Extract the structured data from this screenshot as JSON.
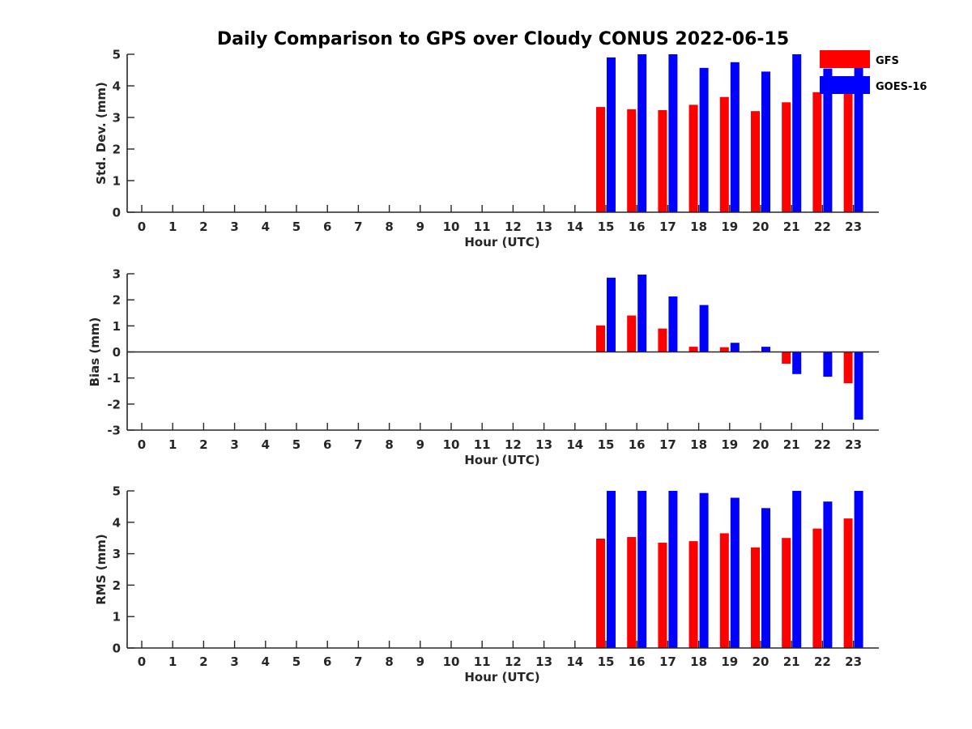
{
  "title": "Daily Comparison to GPS over Cloudy CONUS 2022-06-15",
  "legend": [
    {
      "label": "GFS",
      "color": "#ff0000"
    },
    {
      "label": "GOES-16",
      "color": "#0000ff"
    }
  ],
  "chart_data": [
    {
      "type": "bar",
      "title": "Daily Comparison to GPS over Cloudy CONUS 2022-06-15",
      "xlabel": "Hour (UTC)",
      "ylabel": "Std. Dev. (mm)",
      "ylim": [
        0,
        5
      ],
      "yticks": [
        0,
        1,
        2,
        3,
        4,
        5
      ],
      "categories": [
        "0",
        "1",
        "2",
        "3",
        "4",
        "5",
        "6",
        "7",
        "8",
        "9",
        "10",
        "11",
        "12",
        "13",
        "14",
        "15",
        "16",
        "17",
        "18",
        "19",
        "20",
        "21",
        "22",
        "23"
      ],
      "series": [
        {
          "name": "GFS",
          "color": "#ff0000",
          "values": [
            null,
            null,
            null,
            null,
            null,
            null,
            null,
            null,
            null,
            null,
            null,
            null,
            null,
            null,
            null,
            3.33,
            3.26,
            3.23,
            3.4,
            3.65,
            3.2,
            3.48,
            3.8,
            3.75
          ]
        },
        {
          "name": "GOES-16",
          "color": "#0000ff",
          "values": [
            null,
            null,
            null,
            null,
            null,
            null,
            null,
            null,
            null,
            null,
            null,
            null,
            null,
            null,
            null,
            4.9,
            5.05,
            5.1,
            4.57,
            4.75,
            4.45,
            5.05,
            4.55,
            4.6
          ]
        }
      ]
    },
    {
      "type": "bar",
      "xlabel": "Hour (UTC)",
      "ylabel": "Bias (mm)",
      "ylim": [
        -3,
        3
      ],
      "yticks": [
        -3,
        -2,
        -1,
        0,
        1,
        2,
        3
      ],
      "zero_line": true,
      "categories": [
        "0",
        "1",
        "2",
        "3",
        "4",
        "5",
        "6",
        "7",
        "8",
        "9",
        "10",
        "11",
        "12",
        "13",
        "14",
        "15",
        "16",
        "17",
        "18",
        "19",
        "20",
        "21",
        "22",
        "23"
      ],
      "series": [
        {
          "name": "GFS",
          "color": "#ff0000",
          "values": [
            null,
            null,
            null,
            null,
            null,
            null,
            null,
            null,
            null,
            null,
            null,
            null,
            null,
            null,
            null,
            1.02,
            1.4,
            0.9,
            0.2,
            0.18,
            0.03,
            -0.45,
            0.0,
            -1.2
          ]
        },
        {
          "name": "GOES-16",
          "color": "#0000ff",
          "values": [
            null,
            null,
            null,
            null,
            null,
            null,
            null,
            null,
            null,
            null,
            null,
            null,
            null,
            null,
            null,
            2.85,
            2.97,
            2.13,
            1.8,
            0.35,
            0.2,
            -0.85,
            -0.95,
            -2.6
          ]
        }
      ]
    },
    {
      "type": "bar",
      "xlabel": "Hour (UTC)",
      "ylabel": "RMS (mm)",
      "ylim": [
        0,
        5
      ],
      "yticks": [
        0,
        1,
        2,
        3,
        4,
        5
      ],
      "categories": [
        "0",
        "1",
        "2",
        "3",
        "4",
        "5",
        "6",
        "7",
        "8",
        "9",
        "10",
        "11",
        "12",
        "13",
        "14",
        "15",
        "16",
        "17",
        "18",
        "19",
        "20",
        "21",
        "22",
        "23"
      ],
      "series": [
        {
          "name": "GFS",
          "color": "#ff0000",
          "values": [
            null,
            null,
            null,
            null,
            null,
            null,
            null,
            null,
            null,
            null,
            null,
            null,
            null,
            null,
            null,
            3.48,
            3.53,
            3.35,
            3.4,
            3.65,
            3.2,
            3.5,
            3.8,
            4.12
          ]
        },
        {
          "name": "GOES-16",
          "color": "#0000ff",
          "values": [
            null,
            null,
            null,
            null,
            null,
            null,
            null,
            null,
            null,
            null,
            null,
            null,
            null,
            null,
            null,
            5.1,
            5.1,
            5.1,
            4.93,
            4.78,
            4.45,
            5.1,
            4.66,
            5.1
          ]
        }
      ]
    }
  ]
}
